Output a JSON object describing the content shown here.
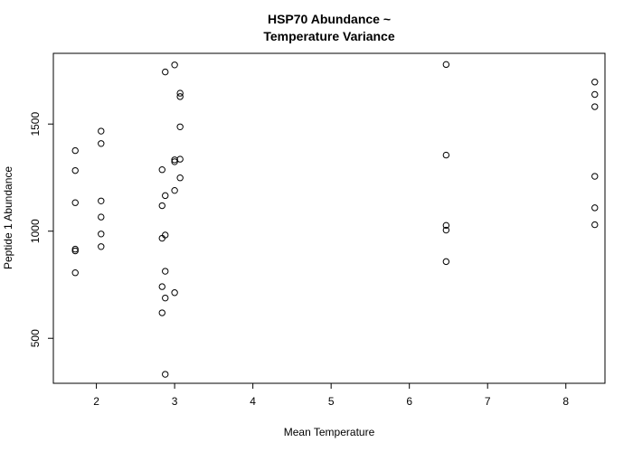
{
  "chart_data": {
    "type": "scatter",
    "title": [
      "HSP70 Abundance ~",
      "Temperature Variance"
    ],
    "xlabel": "Mean Temperature",
    "ylabel": "Peptide 1 Abundance",
    "xlim": [
      1.45,
      8.5
    ],
    "ylim": [
      290,
      1830
    ],
    "xticks": [
      2,
      3,
      4,
      5,
      6,
      7,
      8
    ],
    "yticks": [
      500,
      1000,
      1500
    ],
    "grid": false,
    "marker": "open-circle",
    "points": [
      {
        "x": 1.73,
        "y": 1376
      },
      {
        "x": 1.73,
        "y": 1283
      },
      {
        "x": 1.73,
        "y": 1133
      },
      {
        "x": 1.73,
        "y": 916
      },
      {
        "x": 1.73,
        "y": 908
      },
      {
        "x": 1.73,
        "y": 806
      },
      {
        "x": 2.06,
        "y": 1467
      },
      {
        "x": 2.06,
        "y": 1409
      },
      {
        "x": 2.06,
        "y": 1141
      },
      {
        "x": 2.06,
        "y": 1066
      },
      {
        "x": 2.06,
        "y": 987
      },
      {
        "x": 2.06,
        "y": 928
      },
      {
        "x": 2.84,
        "y": 1287
      },
      {
        "x": 2.84,
        "y": 1119
      },
      {
        "x": 2.84,
        "y": 967
      },
      {
        "x": 2.84,
        "y": 741
      },
      {
        "x": 2.84,
        "y": 619
      },
      {
        "x": 2.88,
        "y": 1743
      },
      {
        "x": 2.88,
        "y": 1166
      },
      {
        "x": 2.88,
        "y": 982
      },
      {
        "x": 2.88,
        "y": 813
      },
      {
        "x": 2.88,
        "y": 688
      },
      {
        "x": 2.88,
        "y": 332
      },
      {
        "x": 3.0,
        "y": 1776
      },
      {
        "x": 3.0,
        "y": 1333
      },
      {
        "x": 3.0,
        "y": 1324
      },
      {
        "x": 3.0,
        "y": 1190
      },
      {
        "x": 3.0,
        "y": 713
      },
      {
        "x": 3.07,
        "y": 1644
      },
      {
        "x": 3.07,
        "y": 1628
      },
      {
        "x": 3.07,
        "y": 1487
      },
      {
        "x": 3.07,
        "y": 1336
      },
      {
        "x": 3.07,
        "y": 1249
      },
      {
        "x": 6.47,
        "y": 1778
      },
      {
        "x": 6.47,
        "y": 1355
      },
      {
        "x": 6.47,
        "y": 1027
      },
      {
        "x": 6.47,
        "y": 1005
      },
      {
        "x": 6.47,
        "y": 858
      },
      {
        "x": 8.37,
        "y": 1696
      },
      {
        "x": 8.37,
        "y": 1638
      },
      {
        "x": 8.37,
        "y": 1581
      },
      {
        "x": 8.37,
        "y": 1256
      },
      {
        "x": 8.37,
        "y": 1109
      },
      {
        "x": 8.37,
        "y": 1030
      }
    ]
  }
}
